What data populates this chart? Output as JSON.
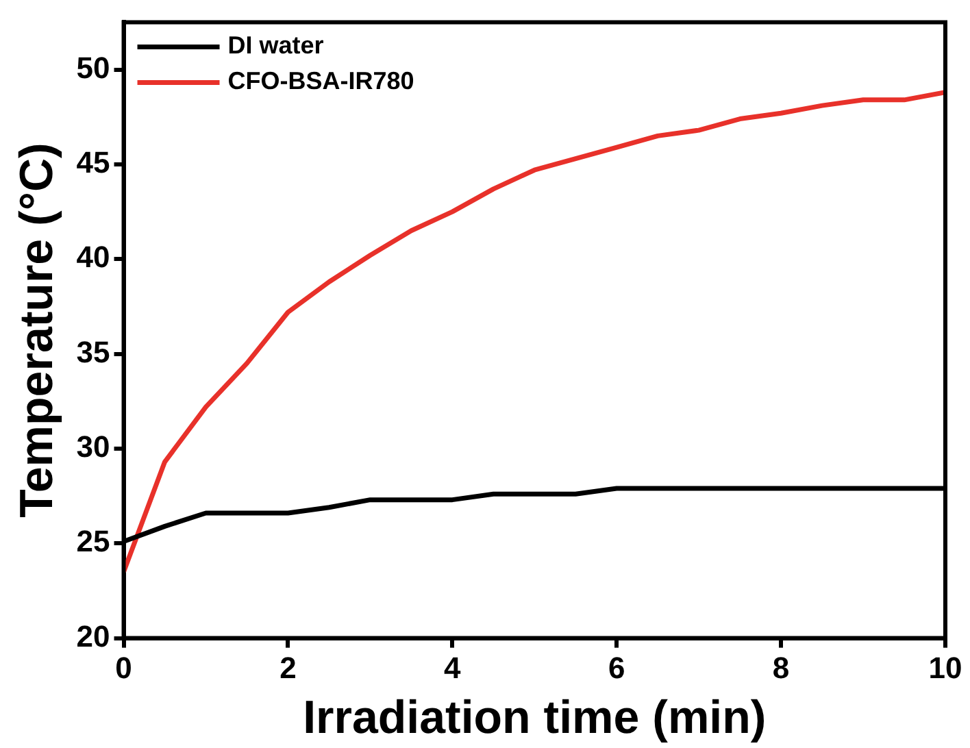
{
  "chart_data": {
    "type": "line",
    "xlabel": "Irradiation time (min)",
    "ylabel": "Temperature (°C)",
    "x": [
      0,
      0.5,
      1,
      1.5,
      2,
      2.5,
      3,
      3.5,
      4,
      4.5,
      5,
      5.5,
      6,
      6.5,
      7,
      7.5,
      8,
      8.5,
      9,
      9.5,
      10
    ],
    "series": [
      {
        "name": "DI water",
        "color": "#000000",
        "values": [
          25.1,
          25.9,
          26.6,
          26.6,
          26.6,
          26.9,
          27.3,
          27.3,
          27.3,
          27.6,
          27.6,
          27.6,
          27.9,
          27.9,
          27.9,
          27.9,
          27.9,
          27.9,
          27.9,
          27.9,
          27.9
        ]
      },
      {
        "name": "CFO-BSA-IR780",
        "color": "#e8312a",
        "values": [
          23.5,
          29.3,
          32.2,
          34.5,
          37.2,
          38.8,
          40.2,
          41.5,
          42.5,
          43.7,
          44.7,
          45.3,
          45.9,
          46.5,
          46.8,
          47.4,
          47.7,
          48.1,
          48.4,
          48.4,
          48.8
        ]
      }
    ],
    "xlim": [
      0,
      10
    ],
    "xticks": [
      0,
      2,
      4,
      6,
      8,
      10
    ],
    "ylim": [
      20,
      52.5
    ],
    "yticks": [
      20,
      25,
      30,
      35,
      40,
      45,
      50
    ],
    "legend": "top left",
    "marker": "none",
    "line_style": "solid"
  }
}
